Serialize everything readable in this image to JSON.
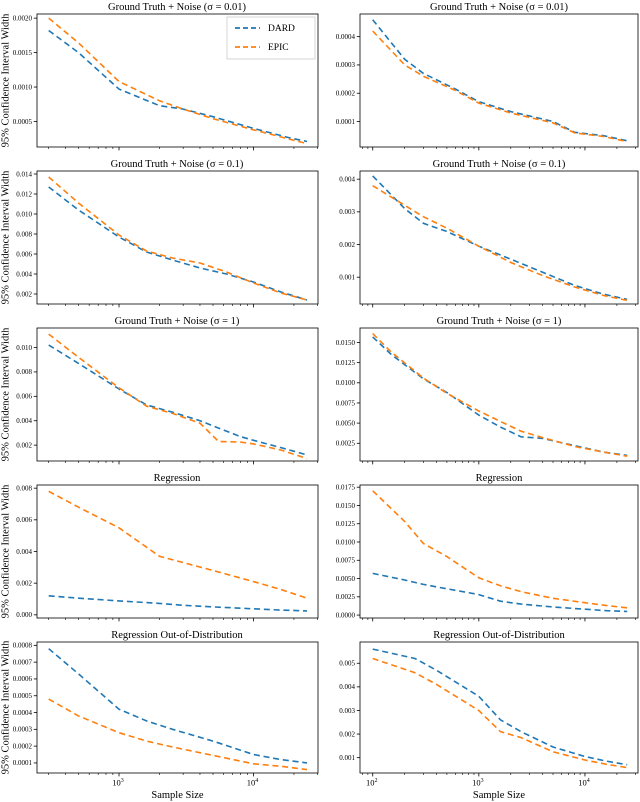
{
  "figure": {
    "ylabel": "95% Confidence Interval Width",
    "xlabel": "Sample Size",
    "background": "#ffffff",
    "axis_color": "#000000"
  },
  "legend": {
    "position": "upper right of first subplot",
    "entries": [
      {
        "label": "DARD",
        "color": "#1f77b4"
      },
      {
        "label": "EPIC",
        "color": "#ff7f0e"
      }
    ]
  },
  "chart_data": [
    {
      "type": "line",
      "x_scale": "log",
      "title": "Ground Truth + Noise (σ = 0.01)",
      "show_ylabel": true,
      "show_xlabel": false,
      "show_legend": true,
      "show_x_tick_labels": false,
      "xlim_log": [
        2.39,
        4.48
      ],
      "xtick_exps": [
        3,
        4
      ],
      "ylim": [
        0.00013,
        0.00206
      ],
      "yticks": [
        0.0005,
        0.001,
        0.0015,
        0.002
      ],
      "ytick_labels": [
        "0.0005",
        "0.0010",
        "0.0015",
        "0.0020"
      ],
      "series": [
        {
          "name": "DARD",
          "color": "#1f77b4",
          "x": [
            300,
            500,
            1000,
            2000,
            3000,
            5000,
            10000,
            18000,
            25000
          ],
          "y": [
            0.00182,
            0.0015,
            0.00097,
            0.00073,
            0.00068,
            0.00057,
            0.0004,
            0.00027,
            0.00021
          ]
        },
        {
          "name": "EPIC",
          "color": "#ff7f0e",
          "x": [
            300,
            500,
            1000,
            2000,
            3000,
            5000,
            10000,
            18000,
            25000
          ],
          "y": [
            0.002,
            0.00164,
            0.00108,
            0.0008,
            0.00068,
            0.00054,
            0.00038,
            0.00025,
            0.00018
          ]
        }
      ]
    },
    {
      "type": "line",
      "x_scale": "log",
      "title": "Ground Truth + Noise (σ = 0.01)",
      "show_ylabel": false,
      "show_xlabel": false,
      "show_legend": false,
      "show_x_tick_labels": false,
      "xlim_log": [
        1.88,
        4.5
      ],
      "xtick_exps": [
        2,
        3,
        4
      ],
      "ylim": [
        1e-05,
        0.00048
      ],
      "yticks": [
        0.0001,
        0.0002,
        0.0003,
        0.0004
      ],
      "ytick_labels": [
        "0.0001",
        "0.0002",
        "0.0003",
        "0.0004"
      ],
      "series": [
        {
          "name": "DARD",
          "color": "#1f77b4",
          "x": [
            100,
            200,
            300,
            600,
            1000,
            2000,
            5000,
            8000,
            15000,
            25000
          ],
          "y": [
            0.00046,
            0.00032,
            0.00027,
            0.000215,
            0.00017,
            0.000135,
            0.0001,
            6.2e-05,
            5e-05,
            3.2e-05
          ]
        },
        {
          "name": "EPIC",
          "color": "#ff7f0e",
          "x": [
            100,
            200,
            300,
            600,
            1000,
            2000,
            5000,
            8000,
            15000,
            25000
          ],
          "y": [
            0.00042,
            0.0003,
            0.00026,
            0.00021,
            0.000165,
            0.00013,
            9.5e-05,
            6e-05,
            4.7e-05,
            2.9e-05
          ]
        }
      ]
    },
    {
      "type": "line",
      "x_scale": "log",
      "title": "Ground Truth + Noise (σ = 0.1)",
      "show_ylabel": true,
      "show_xlabel": false,
      "show_legend": false,
      "show_x_tick_labels": false,
      "xlim_log": [
        2.39,
        4.48
      ],
      "xtick_exps": [
        3,
        4
      ],
      "ylim": [
        0.001,
        0.0143
      ],
      "yticks": [
        0.002,
        0.004,
        0.006,
        0.008,
        0.01,
        0.012,
        0.014
      ],
      "ytick_labels": [
        "0.002",
        "0.004",
        "0.006",
        "0.008",
        "0.010",
        "0.012",
        "0.014"
      ],
      "series": [
        {
          "name": "DARD",
          "color": "#1f77b4",
          "x": [
            300,
            500,
            1000,
            1600,
            2500,
            4000,
            6300,
            10000,
            16000,
            25000
          ],
          "y": [
            0.0127,
            0.0104,
            0.0077,
            0.0062,
            0.0054,
            0.0046,
            0.004,
            0.0032,
            0.0022,
            0.0014
          ]
        },
        {
          "name": "EPIC",
          "color": "#ff7f0e",
          "x": [
            300,
            500,
            1000,
            1600,
            2500,
            4000,
            6300,
            10000,
            16000,
            25000
          ],
          "y": [
            0.0137,
            0.0111,
            0.0079,
            0.0063,
            0.0056,
            0.0051,
            0.0042,
            0.0031,
            0.0021,
            0.0014
          ]
        }
      ]
    },
    {
      "type": "line",
      "x_scale": "log",
      "title": "Ground Truth + Noise (σ = 0.1)",
      "show_ylabel": false,
      "show_xlabel": false,
      "show_legend": false,
      "show_x_tick_labels": false,
      "xlim_log": [
        1.88,
        4.5
      ],
      "xtick_exps": [
        2,
        3,
        4
      ],
      "ylim": [
        0.00018,
        0.00425
      ],
      "yticks": [
        0.001,
        0.002,
        0.003,
        0.004
      ],
      "ytick_labels": [
        "0.001",
        "0.002",
        "0.003",
        "0.004"
      ],
      "series": [
        {
          "name": "DARD",
          "color": "#1f77b4",
          "x": [
            100,
            200,
            300,
            500,
            1000,
            2000,
            4000,
            8000,
            15000,
            25000
          ],
          "y": [
            0.0041,
            0.0031,
            0.00265,
            0.0024,
            0.00195,
            0.00155,
            0.00115,
            0.00075,
            0.00048,
            0.00032
          ]
        },
        {
          "name": "EPIC",
          "color": "#ff7f0e",
          "x": [
            100,
            200,
            300,
            500,
            1000,
            2000,
            4000,
            8000,
            15000,
            25000
          ],
          "y": [
            0.0038,
            0.0032,
            0.00285,
            0.0025,
            0.00195,
            0.00145,
            0.00105,
            0.0007,
            0.00044,
            0.00029
          ]
        }
      ]
    },
    {
      "type": "line",
      "x_scale": "log",
      "title": "Ground Truth + Noise (σ = 1)",
      "show_ylabel": true,
      "show_xlabel": false,
      "show_legend": false,
      "show_x_tick_labels": false,
      "xlim_log": [
        2.39,
        4.48
      ],
      "xtick_exps": [
        3,
        4
      ],
      "ylim": [
        0.0007,
        0.0116
      ],
      "yticks": [
        0.002,
        0.004,
        0.006,
        0.008,
        0.01
      ],
      "ytick_labels": [
        "0.002",
        "0.004",
        "0.006",
        "0.008",
        "0.010"
      ],
      "series": [
        {
          "name": "DARD",
          "color": "#1f77b4",
          "x": [
            300,
            500,
            1000,
            1600,
            2500,
            4000,
            5500,
            8000,
            10000,
            16000,
            25000
          ],
          "y": [
            0.0102,
            0.0087,
            0.0066,
            0.0053,
            0.0047,
            0.004,
            0.0034,
            0.0027,
            0.0024,
            0.0018,
            0.0012
          ]
        },
        {
          "name": "EPIC",
          "color": "#ff7f0e",
          "x": [
            300,
            500,
            1000,
            1600,
            2500,
            4000,
            5500,
            8000,
            10000,
            16000,
            25000
          ],
          "y": [
            0.0111,
            0.0092,
            0.0067,
            0.0052,
            0.0046,
            0.0038,
            0.0023,
            0.00225,
            0.0021,
            0.0016,
            0.0009
          ]
        }
      ]
    },
    {
      "type": "line",
      "x_scale": "log",
      "title": "Ground Truth + Noise (σ = 1)",
      "show_ylabel": false,
      "show_xlabel": false,
      "show_legend": false,
      "show_x_tick_labels": false,
      "xlim_log": [
        1.88,
        4.5
      ],
      "xtick_exps": [
        2,
        3,
        4
      ],
      "ylim": [
        0.0003,
        0.0168
      ],
      "yticks": [
        0.0025,
        0.005,
        0.0075,
        0.01,
        0.0125,
        0.015
      ],
      "ytick_labels": [
        "0.0025",
        "0.0050",
        "0.0075",
        "0.0100",
        "0.0125",
        "0.0150"
      ],
      "series": [
        {
          "name": "DARD",
          "color": "#1f77b4",
          "x": [
            100,
            150,
            300,
            500,
            1000,
            1600,
            2500,
            4000,
            8000,
            15000,
            25000
          ],
          "y": [
            0.0157,
            0.0135,
            0.0105,
            0.0088,
            0.006,
            0.0045,
            0.0033,
            0.0031,
            0.0022,
            0.0014,
            0.001
          ]
        },
        {
          "name": "EPIC",
          "color": "#ff7f0e",
          "x": [
            100,
            150,
            300,
            500,
            1000,
            1600,
            2500,
            4000,
            8000,
            15000,
            25000
          ],
          "y": [
            0.0161,
            0.0138,
            0.0106,
            0.0087,
            0.0065,
            0.0052,
            0.004,
            0.0032,
            0.0021,
            0.0014,
            0.0009
          ]
        }
      ]
    },
    {
      "type": "line",
      "x_scale": "log",
      "title": "Regression",
      "show_ylabel": true,
      "show_xlabel": false,
      "show_legend": false,
      "show_x_tick_labels": false,
      "xlim_log": [
        2.39,
        4.48
      ],
      "xtick_exps": [
        3,
        4
      ],
      "ylim": [
        -0.0002,
        0.0082
      ],
      "yticks": [
        0.0,
        0.002,
        0.004,
        0.006,
        0.008
      ],
      "ytick_labels": [
        "0.000",
        "0.002",
        "0.004",
        "0.006",
        "0.008"
      ],
      "series": [
        {
          "name": "DARD",
          "color": "#1f77b4",
          "x": [
            300,
            500,
            1000,
            2000,
            3000,
            5000,
            10000,
            16000,
            25000
          ],
          "y": [
            0.0012,
            0.00105,
            0.00088,
            0.00072,
            0.0006,
            0.0005,
            0.00038,
            0.0003,
            0.00025
          ]
        },
        {
          "name": "EPIC",
          "color": "#ff7f0e",
          "x": [
            300,
            500,
            1000,
            2000,
            3000,
            5000,
            10000,
            16000,
            25000
          ],
          "y": [
            0.0078,
            0.0068,
            0.0055,
            0.0037,
            0.0033,
            0.0028,
            0.0021,
            0.0016,
            0.00105
          ]
        }
      ]
    },
    {
      "type": "line",
      "x_scale": "log",
      "title": "Regression",
      "show_ylabel": false,
      "show_xlabel": false,
      "show_legend": false,
      "show_x_tick_labels": false,
      "xlim_log": [
        1.88,
        4.5
      ],
      "xtick_exps": [
        2,
        3,
        4
      ],
      "ylim": [
        -0.0004,
        0.0178
      ],
      "yticks": [
        0.0,
        0.0025,
        0.005,
        0.0075,
        0.01,
        0.0125,
        0.015,
        0.0175
      ],
      "ytick_labels": [
        "0.0000",
        "0.0025",
        "0.0050",
        "0.0075",
        "0.0100",
        "0.0125",
        "0.0150",
        "0.0175"
      ],
      "series": [
        {
          "name": "DARD",
          "color": "#1f77b4",
          "x": [
            100,
            200,
            300,
            500,
            1000,
            1600,
            2500,
            5000,
            10000,
            16000,
            25000
          ],
          "y": [
            0.0057,
            0.0048,
            0.0042,
            0.0036,
            0.0028,
            0.0019,
            0.0015,
            0.0011,
            0.0008,
            0.0006,
            0.0005
          ]
        },
        {
          "name": "EPIC",
          "color": "#ff7f0e",
          "x": [
            100,
            200,
            300,
            500,
            1000,
            1600,
            2500,
            5000,
            10000,
            16000,
            25000
          ],
          "y": [
            0.017,
            0.0128,
            0.0098,
            0.008,
            0.0051,
            0.004,
            0.0032,
            0.0023,
            0.0017,
            0.0013,
            0.001
          ]
        }
      ]
    },
    {
      "type": "line",
      "x_scale": "log",
      "title": "Regression Out-of-Distribution",
      "show_ylabel": true,
      "show_xlabel": true,
      "show_legend": false,
      "show_x_tick_labels": true,
      "xlim_log": [
        2.39,
        4.48
      ],
      "xtick_exps": [
        3,
        4
      ],
      "ylim": [
        4e-05,
        0.00082
      ],
      "yticks": [
        0.0001,
        0.0002,
        0.0003,
        0.0004,
        0.0005,
        0.0006,
        0.0007,
        0.0008
      ],
      "ytick_labels": [
        "0.0001",
        "0.0002",
        "0.0003",
        "0.0004",
        "0.0005",
        "0.0006",
        "0.0007",
        "0.0008"
      ],
      "series": [
        {
          "name": "DARD",
          "color": "#1f77b4",
          "x": [
            300,
            500,
            1000,
            1600,
            2500,
            5000,
            10000,
            16000,
            25000
          ],
          "y": [
            0.00078,
            0.00063,
            0.00042,
            0.00035,
            0.0003,
            0.00023,
            0.00015,
            0.00012,
            0.0001
          ]
        },
        {
          "name": "EPIC",
          "color": "#ff7f0e",
          "x": [
            300,
            500,
            1000,
            1600,
            2500,
            5000,
            10000,
            16000,
            25000
          ],
          "y": [
            0.00048,
            0.00038,
            0.00028,
            0.00023,
            0.000195,
            0.000145,
            9.5e-05,
            8e-05,
            6e-05
          ]
        }
      ]
    },
    {
      "type": "line",
      "x_scale": "log",
      "title": "Regression Out-of-Distribution",
      "show_ylabel": false,
      "show_xlabel": true,
      "show_legend": false,
      "show_x_tick_labels": true,
      "xlim_log": [
        1.88,
        4.5
      ],
      "xtick_exps": [
        2,
        3,
        4
      ],
      "ylim": [
        0.00035,
        0.0059
      ],
      "yticks": [
        0.001,
        0.002,
        0.003,
        0.004,
        0.005
      ],
      "ytick_labels": [
        "0.001",
        "0.002",
        "0.003",
        "0.004",
        "0.005"
      ],
      "series": [
        {
          "name": "DARD",
          "color": "#1f77b4",
          "x": [
            100,
            250,
            400,
            1000,
            1600,
            2500,
            5000,
            10000,
            16000,
            25000
          ],
          "y": [
            0.0056,
            0.0052,
            0.0047,
            0.0036,
            0.0026,
            0.0021,
            0.00145,
            0.00105,
            0.00085,
            0.0007
          ]
        },
        {
          "name": "EPIC",
          "color": "#ff7f0e",
          "x": [
            100,
            250,
            400,
            1000,
            1600,
            2500,
            5000,
            10000,
            16000,
            25000
          ],
          "y": [
            0.0052,
            0.0046,
            0.0041,
            0.003,
            0.0021,
            0.00185,
            0.00125,
            0.0009,
            0.00072,
            0.00058
          ]
        }
      ]
    }
  ]
}
